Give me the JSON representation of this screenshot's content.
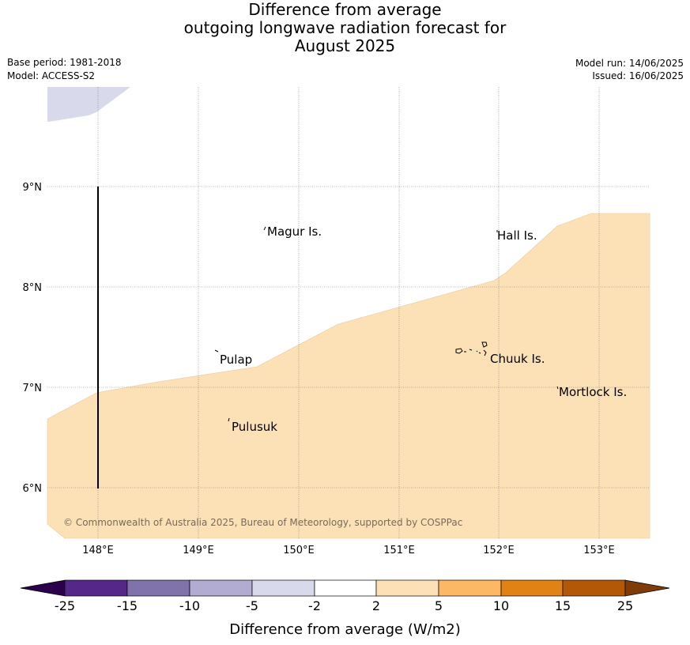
{
  "title": {
    "line1": "Difference from average",
    "line2": "outgoing longwave radiation forecast for",
    "line3": "August 2025"
  },
  "meta": {
    "base_period": "Base period: 1981-2018",
    "model": "Model: ACCESS-S2",
    "model_run": "Model run: 14/06/2025",
    "issued": "Issued: 16/06/2025"
  },
  "map": {
    "lon_ticks": [
      "148°E",
      "149°E",
      "150°E",
      "151°E",
      "152°E",
      "153°E"
    ],
    "lat_ticks": [
      "9°N",
      "8°N",
      "7°N",
      "6°N"
    ],
    "places": [
      {
        "name": "Magur Is."
      },
      {
        "name": "Hall Is."
      },
      {
        "name": "Pulap"
      },
      {
        "name": "Chuuk Is."
      },
      {
        "name": "Mortlock Is."
      },
      {
        "name": "Pulusuk"
      }
    ],
    "copyright": "© Commonwealth of Australia 2025, Bureau of Meteorology, supported by COSPPac",
    "fill_colors": {
      "positive_2_to_5": "#fce0b6",
      "negative_-5_to_-2": "#d8d9ea"
    }
  },
  "colorbar": {
    "label": "Difference from average (W/m2)",
    "ticks": [
      "-25",
      "-15",
      "-10",
      "-5",
      "-2",
      "2",
      "5",
      "10",
      "15",
      "25"
    ],
    "colors": [
      "#2d004b",
      "#542788",
      "#8073ac",
      "#b2abd2",
      "#d8daeb",
      "#ffffff",
      "#fee0b6",
      "#fdb863",
      "#e08214",
      "#b35806",
      "#7f3b08"
    ]
  }
}
